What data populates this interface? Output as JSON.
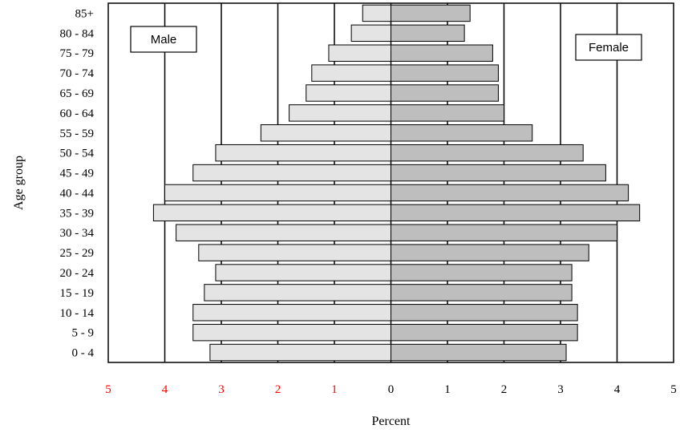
{
  "chart_data": {
    "type": "bar",
    "orientation": "horizontal",
    "subtype": "population-pyramid",
    "categories": [
      "0 - 4",
      "5 - 9",
      "10 - 14",
      "15 - 19",
      "20 - 24",
      "25 - 29",
      "30 - 34",
      "35 - 39",
      "40 - 44",
      "45 - 49",
      "50 - 54",
      "55 - 59",
      "60 - 64",
      "65 - 69",
      "70 - 74",
      "75 - 79",
      "80 - 84",
      "85+"
    ],
    "series": [
      {
        "name": "Male",
        "side": "left",
        "color": "#e4e4e4",
        "values": [
          3.2,
          3.5,
          3.5,
          3.3,
          3.1,
          3.4,
          3.8,
          4.2,
          4.0,
          3.5,
          3.1,
          2.3,
          1.8,
          1.5,
          1.4,
          1.1,
          0.7,
          0.5
        ]
      },
      {
        "name": "Female",
        "side": "right",
        "color": "#bebebe",
        "values": [
          3.1,
          3.3,
          3.3,
          3.2,
          3.2,
          3.5,
          4.0,
          4.4,
          4.2,
          3.8,
          3.4,
          2.5,
          2.0,
          1.9,
          1.9,
          1.8,
          1.3,
          1.4
        ]
      }
    ],
    "xlabel": "Percent",
    "ylabel": "Age group",
    "xlim": [
      -5,
      5
    ],
    "xticks_left": [
      "5",
      "4",
      "3",
      "2",
      "1"
    ],
    "xticks_right": [
      "0",
      "1",
      "2",
      "3",
      "4",
      "5"
    ],
    "left_tick_color": "#ff0000",
    "grid": "vertical",
    "legend_labels": {
      "left": "Male",
      "right": "Female"
    }
  }
}
